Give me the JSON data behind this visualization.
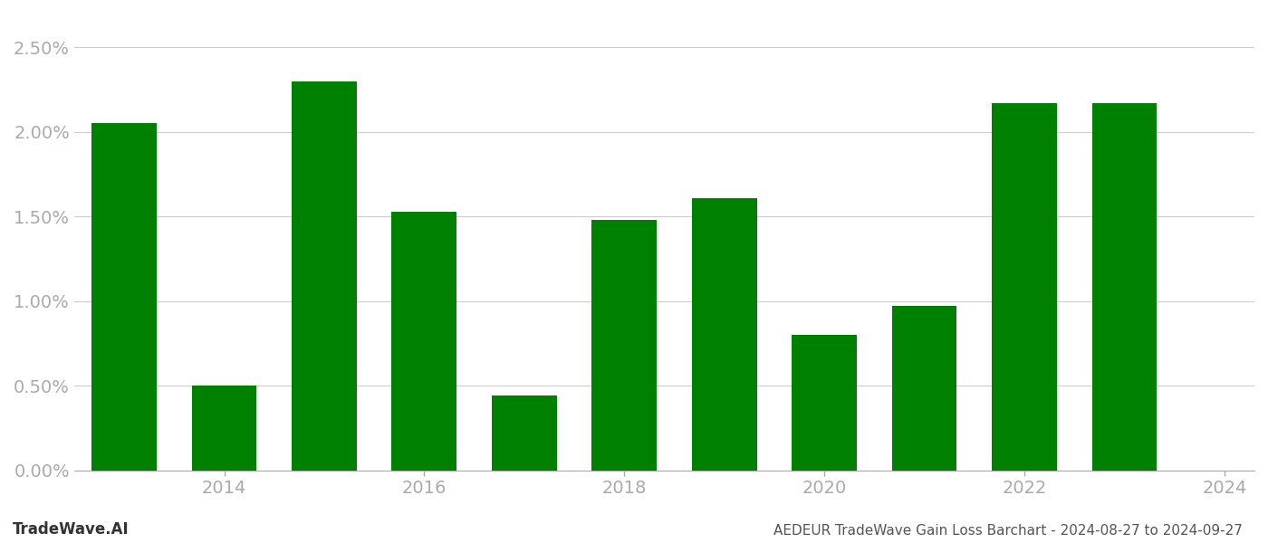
{
  "years": [
    2013,
    2014,
    2015,
    2016,
    2017,
    2018,
    2019,
    2020,
    2021,
    2022,
    2023
  ],
  "values": [
    0.0205,
    0.005,
    0.023,
    0.0153,
    0.0044,
    0.0148,
    0.0161,
    0.008,
    0.0097,
    0.0217,
    0.0217
  ],
  "bar_color": "#008000",
  "title": "AEDEUR TradeWave Gain Loss Barchart - 2024-08-27 to 2024-09-27",
  "watermark": "TradeWave.AI",
  "ylabel_ticks": [
    0.0,
    0.005,
    0.01,
    0.015,
    0.02,
    0.025
  ],
  "ylim": [
    0,
    0.027
  ],
  "background_color": "#ffffff",
  "grid_color": "#cccccc",
  "axis_color": "#aaaaaa",
  "tick_color": "#aaaaaa",
  "title_color": "#555555",
  "watermark_color": "#333333",
  "title_fontsize": 11,
  "watermark_fontsize": 12,
  "tick_fontsize": 14,
  "xtick_years": [
    2014,
    2016,
    2018,
    2020,
    2022,
    2024
  ],
  "bar_width": 0.65
}
